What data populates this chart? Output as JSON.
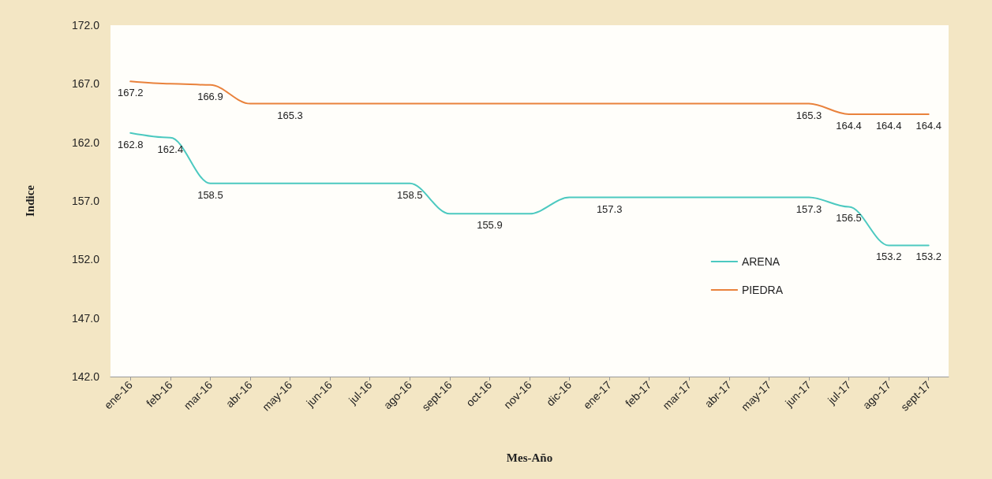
{
  "chart_data": {
    "type": "line",
    "xlabel": "Mes-Año",
    "ylabel": "Indice",
    "categories": [
      "ene-16",
      "feb-16",
      "mar-16",
      "abr-16",
      "may-16",
      "jun-16",
      "jul-16",
      "ago-16",
      "sept-16",
      "oct-16",
      "nov-16",
      "dic-16",
      "ene-17",
      "feb-17",
      "mar-17",
      "abr-17",
      "may-17",
      "jun-17",
      "jul-17",
      "ago-17",
      "sept-17"
    ],
    "series": [
      {
        "name": "ARENA",
        "color": "#4cc9c0",
        "values": [
          162.8,
          162.4,
          158.5,
          158.5,
          158.5,
          158.5,
          158.5,
          158.5,
          155.9,
          155.9,
          155.9,
          157.3,
          157.3,
          157.3,
          157.3,
          157.3,
          157.3,
          157.3,
          156.5,
          153.2,
          153.2
        ],
        "value_labels": [
          "162.8",
          "162.4",
          "158.5",
          null,
          null,
          null,
          null,
          "158.5",
          null,
          "155.9",
          null,
          null,
          "157.3",
          null,
          null,
          null,
          null,
          "157.3",
          "156.5",
          "153.2",
          "153.2"
        ]
      },
      {
        "name": "PIEDRA",
        "color": "#e9823c",
        "values": [
          167.2,
          167.0,
          166.9,
          165.3,
          165.3,
          165.3,
          165.3,
          165.3,
          165.3,
          165.3,
          165.3,
          165.3,
          165.3,
          165.3,
          165.3,
          165.3,
          165.3,
          165.3,
          164.4,
          164.4,
          164.4
        ],
        "value_labels": [
          "167.2",
          null,
          "166.9",
          null,
          "165.3",
          null,
          null,
          null,
          null,
          null,
          null,
          null,
          null,
          null,
          null,
          null,
          null,
          "165.3",
          "164.4",
          "164.4",
          "164.4"
        ]
      }
    ],
    "ylim": [
      142,
      172
    ],
    "yticks": [
      {
        "value": 142,
        "label": "142.0"
      },
      {
        "value": 147,
        "label": "147.0"
      },
      {
        "value": 152,
        "label": "152.0"
      },
      {
        "value": 157,
        "label": "157.0"
      },
      {
        "value": 162,
        "label": "162.0"
      },
      {
        "value": 167,
        "label": "167.0"
      },
      {
        "value": 172,
        "label": "172.0"
      }
    ],
    "grid": false,
    "legend": "right",
    "marker": "none",
    "line_style": "solid"
  }
}
